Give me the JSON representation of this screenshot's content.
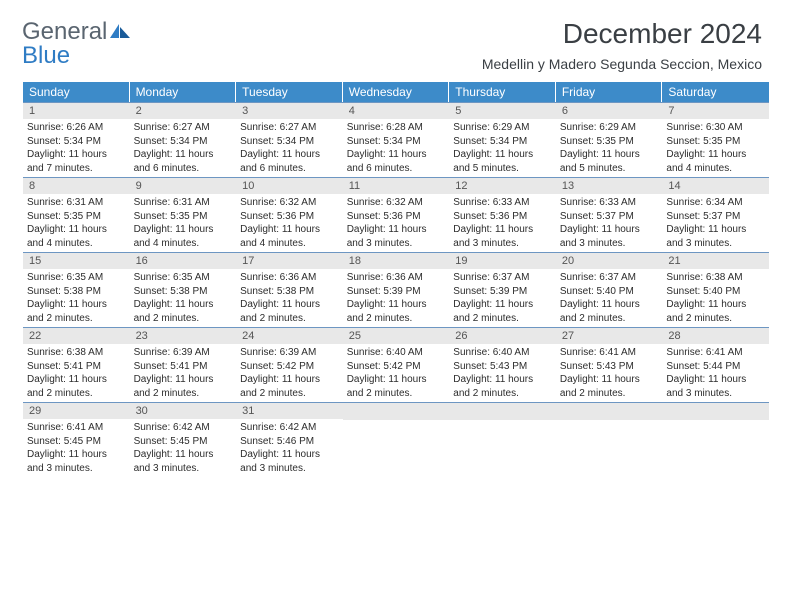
{
  "logo": {
    "word1": "General",
    "word2": "Blue"
  },
  "title": "December 2024",
  "location": "Medellin y Madero Segunda Seccion, Mexico",
  "colors": {
    "header_bg": "#3d8bc9",
    "header_text": "#ffffff",
    "daynum_bg": "#e8e8e8",
    "daynum_text": "#555555",
    "detail_text": "#2c2c2c",
    "week_border": "#6d96c2",
    "logo_gray": "#5a6570",
    "logo_blue": "#2f7cc4",
    "title_color": "#3a3f44"
  },
  "typography": {
    "title_fontsize": 28,
    "location_fontsize": 14,
    "logo_fontsize": 24,
    "dayheader_fontsize": 12,
    "daynum_fontsize": 11,
    "detail_fontsize": 10
  },
  "dayHeaders": [
    "Sunday",
    "Monday",
    "Tuesday",
    "Wednesday",
    "Thursday",
    "Friday",
    "Saturday"
  ],
  "weeks": [
    [
      {
        "n": "1",
        "sr": "6:26 AM",
        "ss": "5:34 PM",
        "dh": "11",
        "dm": "7"
      },
      {
        "n": "2",
        "sr": "6:27 AM",
        "ss": "5:34 PM",
        "dh": "11",
        "dm": "6"
      },
      {
        "n": "3",
        "sr": "6:27 AM",
        "ss": "5:34 PM",
        "dh": "11",
        "dm": "6"
      },
      {
        "n": "4",
        "sr": "6:28 AM",
        "ss": "5:34 PM",
        "dh": "11",
        "dm": "6"
      },
      {
        "n": "5",
        "sr": "6:29 AM",
        "ss": "5:34 PM",
        "dh": "11",
        "dm": "5"
      },
      {
        "n": "6",
        "sr": "6:29 AM",
        "ss": "5:35 PM",
        "dh": "11",
        "dm": "5"
      },
      {
        "n": "7",
        "sr": "6:30 AM",
        "ss": "5:35 PM",
        "dh": "11",
        "dm": "4"
      }
    ],
    [
      {
        "n": "8",
        "sr": "6:31 AM",
        "ss": "5:35 PM",
        "dh": "11",
        "dm": "4"
      },
      {
        "n": "9",
        "sr": "6:31 AM",
        "ss": "5:35 PM",
        "dh": "11",
        "dm": "4"
      },
      {
        "n": "10",
        "sr": "6:32 AM",
        "ss": "5:36 PM",
        "dh": "11",
        "dm": "4"
      },
      {
        "n": "11",
        "sr": "6:32 AM",
        "ss": "5:36 PM",
        "dh": "11",
        "dm": "3"
      },
      {
        "n": "12",
        "sr": "6:33 AM",
        "ss": "5:36 PM",
        "dh": "11",
        "dm": "3"
      },
      {
        "n": "13",
        "sr": "6:33 AM",
        "ss": "5:37 PM",
        "dh": "11",
        "dm": "3"
      },
      {
        "n": "14",
        "sr": "6:34 AM",
        "ss": "5:37 PM",
        "dh": "11",
        "dm": "3"
      }
    ],
    [
      {
        "n": "15",
        "sr": "6:35 AM",
        "ss": "5:38 PM",
        "dh": "11",
        "dm": "2"
      },
      {
        "n": "16",
        "sr": "6:35 AM",
        "ss": "5:38 PM",
        "dh": "11",
        "dm": "2"
      },
      {
        "n": "17",
        "sr": "6:36 AM",
        "ss": "5:38 PM",
        "dh": "11",
        "dm": "2"
      },
      {
        "n": "18",
        "sr": "6:36 AM",
        "ss": "5:39 PM",
        "dh": "11",
        "dm": "2"
      },
      {
        "n": "19",
        "sr": "6:37 AM",
        "ss": "5:39 PM",
        "dh": "11",
        "dm": "2"
      },
      {
        "n": "20",
        "sr": "6:37 AM",
        "ss": "5:40 PM",
        "dh": "11",
        "dm": "2"
      },
      {
        "n": "21",
        "sr": "6:38 AM",
        "ss": "5:40 PM",
        "dh": "11",
        "dm": "2"
      }
    ],
    [
      {
        "n": "22",
        "sr": "6:38 AM",
        "ss": "5:41 PM",
        "dh": "11",
        "dm": "2"
      },
      {
        "n": "23",
        "sr": "6:39 AM",
        "ss": "5:41 PM",
        "dh": "11",
        "dm": "2"
      },
      {
        "n": "24",
        "sr": "6:39 AM",
        "ss": "5:42 PM",
        "dh": "11",
        "dm": "2"
      },
      {
        "n": "25",
        "sr": "6:40 AM",
        "ss": "5:42 PM",
        "dh": "11",
        "dm": "2"
      },
      {
        "n": "26",
        "sr": "6:40 AM",
        "ss": "5:43 PM",
        "dh": "11",
        "dm": "2"
      },
      {
        "n": "27",
        "sr": "6:41 AM",
        "ss": "5:43 PM",
        "dh": "11",
        "dm": "2"
      },
      {
        "n": "28",
        "sr": "6:41 AM",
        "ss": "5:44 PM",
        "dh": "11",
        "dm": "3"
      }
    ],
    [
      {
        "n": "29",
        "sr": "6:41 AM",
        "ss": "5:45 PM",
        "dh": "11",
        "dm": "3"
      },
      {
        "n": "30",
        "sr": "6:42 AM",
        "ss": "5:45 PM",
        "dh": "11",
        "dm": "3"
      },
      {
        "n": "31",
        "sr": "6:42 AM",
        "ss": "5:46 PM",
        "dh": "11",
        "dm": "3"
      },
      null,
      null,
      null,
      null
    ]
  ]
}
